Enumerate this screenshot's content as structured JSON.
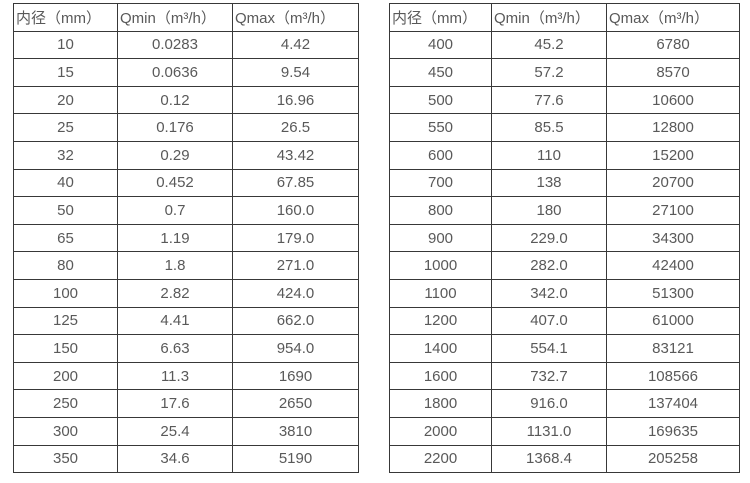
{
  "page": {
    "background_color": "#ffffff",
    "text_color": "#595959",
    "border_color": "#383838"
  },
  "chart_data": [
    {
      "type": "table",
      "name": "flow-rate-table-small-diameters",
      "columns": [
        "内径（mm）",
        "Qmin（m³/h）",
        "Qmax（m³/h）"
      ],
      "rows": [
        [
          "10",
          "0.0283",
          "4.42"
        ],
        [
          "15",
          "0.0636",
          "9.54"
        ],
        [
          "20",
          "0.12",
          "16.96"
        ],
        [
          "25",
          "0.176",
          "26.5"
        ],
        [
          "32",
          "0.29",
          "43.42"
        ],
        [
          "40",
          "0.452",
          "67.85"
        ],
        [
          "50",
          "0.7",
          "160.0"
        ],
        [
          "65",
          "1.19",
          "179.0"
        ],
        [
          "80",
          "1.8",
          "271.0"
        ],
        [
          "100",
          "2.82",
          "424.0"
        ],
        [
          "125",
          "4.41",
          "662.0"
        ],
        [
          "150",
          "6.63",
          "954.0"
        ],
        [
          "200",
          "11.3",
          "1690"
        ],
        [
          "250",
          "17.6",
          "2650"
        ],
        [
          "300",
          "25.4",
          "3810"
        ],
        [
          "350",
          "34.6",
          "5190"
        ]
      ]
    },
    {
      "type": "table",
      "name": "flow-rate-table-large-diameters",
      "columns": [
        "内径（mm）",
        "Qmin（m³/h）",
        "Qmax（m³/h）"
      ],
      "rows": [
        [
          "400",
          "45.2",
          "6780"
        ],
        [
          "450",
          "57.2",
          "8570"
        ],
        [
          "500",
          "77.6",
          "10600"
        ],
        [
          "550",
          "85.5",
          "12800"
        ],
        [
          "600",
          "110",
          "15200"
        ],
        [
          "700",
          "138",
          "20700"
        ],
        [
          "800",
          "180",
          "27100"
        ],
        [
          "900",
          "229.0",
          "34300"
        ],
        [
          "1000",
          "282.0",
          "42400"
        ],
        [
          "1100",
          "342.0",
          "51300"
        ],
        [
          "1200",
          "407.0",
          "61000"
        ],
        [
          "1400",
          "554.1",
          "83121"
        ],
        [
          "1600",
          "732.7",
          "108566"
        ],
        [
          "1800",
          "916.0",
          "137404"
        ],
        [
          "2000",
          "1131.0",
          "169635"
        ],
        [
          "2200",
          "1368.4",
          "205258"
        ]
      ]
    }
  ]
}
